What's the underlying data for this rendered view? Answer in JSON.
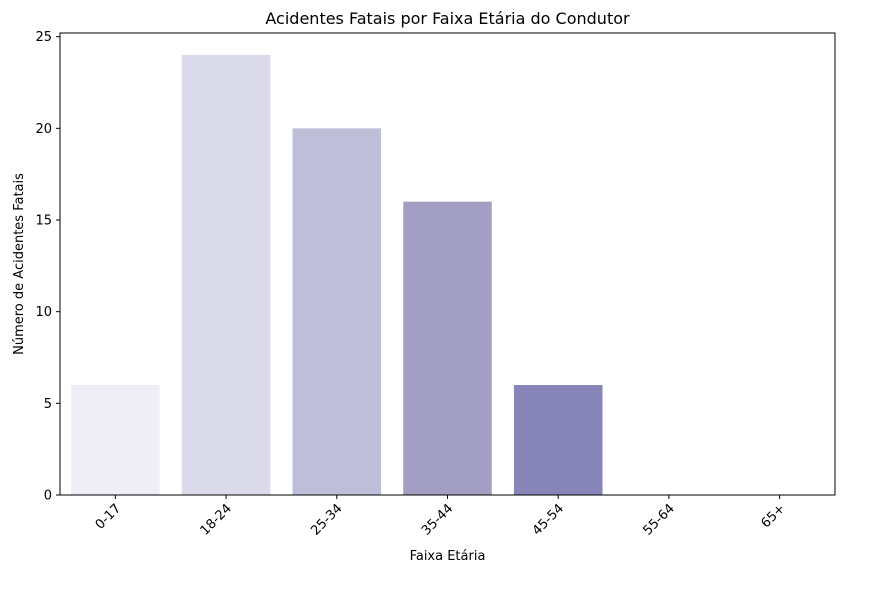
{
  "chart_data": {
    "type": "bar",
    "title": "Acidentes Fatais por Faixa Etária do Condutor",
    "xlabel": "Faixa Etária",
    "ylabel": "Número de Acidentes Fatais",
    "categories": [
      "0-17",
      "18-24",
      "25-34",
      "35-44",
      "45-54",
      "55-64",
      "65+"
    ],
    "values": [
      6,
      24,
      20,
      16,
      6,
      0,
      0
    ],
    "colors": [
      "#efedf5",
      "#dadaeb",
      "#bfbed9",
      "#a39fc4",
      "#8785b7",
      "#6b51a2",
      "#55228f"
    ],
    "ylim": [
      0,
      25.2
    ],
    "yticks": [
      0,
      5,
      10,
      15,
      20,
      25
    ],
    "grid": false,
    "legend": "none"
  }
}
